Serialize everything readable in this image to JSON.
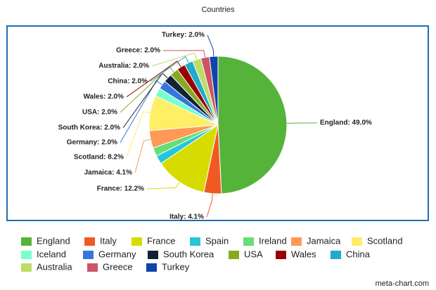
{
  "chart_data": {
    "type": "pie",
    "title": "Countries",
    "categories": [
      "England",
      "Italy",
      "France",
      "Spain",
      "Ireland",
      "Jamaica",
      "Scotland",
      "Iceland",
      "Germany",
      "South Korea",
      "USA",
      "Wales",
      "China",
      "Australia",
      "Greece",
      "Turkey"
    ],
    "values": [
      49.0,
      4.1,
      12.2,
      2.0,
      2.0,
      4.1,
      8.2,
      2.0,
      2.0,
      2.0,
      2.0,
      2.0,
      2.0,
      2.0,
      2.0,
      2.0
    ],
    "value_labels": [
      "England: 49.0%",
      "Italy: 4.1%",
      "France: 12.2%",
      null,
      null,
      "Jamaica: 4.1%",
      "Scotland: 8.2%",
      null,
      "Germany: 2.0%",
      "South Korea: 2.0%",
      "USA: 2.0%",
      "Wales: 2.0%",
      "China: 2.0%",
      "Australia: 2.0%",
      "Greece: 2.0%",
      "Turkey: 2.0%"
    ],
    "colors": [
      "#56b33a",
      "#f05a22",
      "#d6dc00",
      "#26c6da",
      "#66dd77",
      "#ff9955",
      "#ffee66",
      "#77ffcc",
      "#3377dd",
      "#112233",
      "#88aa22",
      "#990000",
      "#22aacc",
      "#bbdd66",
      "#cc5566",
      "#1144aa"
    ],
    "legend": "bottom",
    "watermark": "meta-chart.com"
  }
}
